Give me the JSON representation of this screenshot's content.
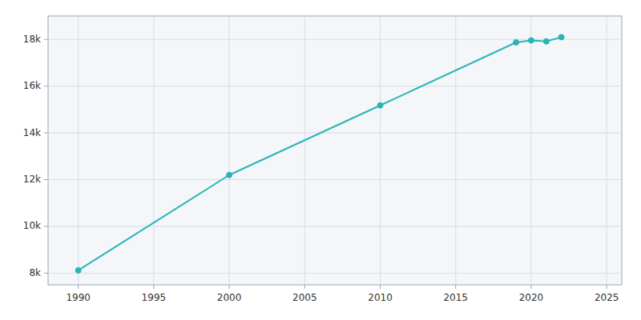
{
  "chart_data": {
    "type": "line",
    "x": [
      1990,
      2000,
      2010,
      2019,
      2020,
      2021,
      2022
    ],
    "values": [
      8118,
      12197,
      15176,
      17871,
      17958,
      17914,
      18096
    ],
    "color": "#2ab5b5",
    "marker": "circle",
    "xlim": [
      1988,
      2026
    ],
    "xticks": [
      1990,
      1995,
      2000,
      2005,
      2010,
      2015,
      2020,
      2025
    ],
    "ylim": [
      7500,
      19000
    ],
    "yticks": [
      {
        "value": 8000,
        "label": "8k"
      },
      {
        "value": 10000,
        "label": "10k"
      },
      {
        "value": 12000,
        "label": "12k"
      },
      {
        "value": 14000,
        "label": "14k"
      },
      {
        "value": 16000,
        "label": "16k"
      },
      {
        "value": 18000,
        "label": "18k"
      }
    ],
    "grid": true
  }
}
